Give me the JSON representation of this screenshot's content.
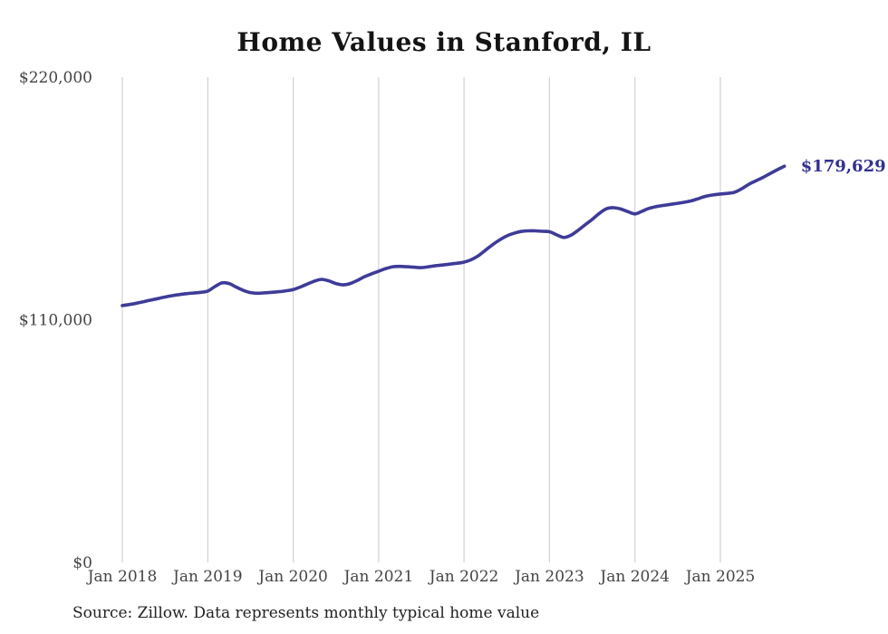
{
  "page": {
    "title": "Home Values in Stanford, IL",
    "source_note": "Source: Zillow. Data represents monthly typical home value"
  },
  "chart_data": {
    "type": "line",
    "title": "Home Values in Stanford, IL",
    "xlabel": "",
    "ylabel": "",
    "ylim": [
      0,
      220000
    ],
    "grid": "vertical-yearly-gridlines",
    "legend": "none",
    "end_label": "$179,629",
    "last_value": 179629,
    "x_tick_labels": [
      "Jan 2018",
      "Jan 2019",
      "Jan 2020",
      "Jan 2021",
      "Jan 2022",
      "Jan 2023",
      "Jan 2024",
      "Jan 2025"
    ],
    "y_ticks": [
      {
        "label": "$220,000",
        "value": 220000
      },
      {
        "label": "$110,000",
        "value": 110000
      },
      {
        "label": "$0",
        "value": 0
      }
    ],
    "x": [
      "2018-01",
      "2018-02",
      "2018-03",
      "2018-04",
      "2018-05",
      "2018-06",
      "2018-07",
      "2018-08",
      "2018-09",
      "2018-10",
      "2018-11",
      "2018-12",
      "2019-01",
      "2019-02",
      "2019-03",
      "2019-04",
      "2019-05",
      "2019-06",
      "2019-07",
      "2019-08",
      "2019-09",
      "2019-10",
      "2019-11",
      "2019-12",
      "2020-01",
      "2020-02",
      "2020-03",
      "2020-04",
      "2020-05",
      "2020-06",
      "2020-07",
      "2020-08",
      "2020-09",
      "2020-10",
      "2020-11",
      "2020-12",
      "2021-01",
      "2021-02",
      "2021-03",
      "2021-04",
      "2021-05",
      "2021-06",
      "2021-07",
      "2021-08",
      "2021-09",
      "2021-10",
      "2021-11",
      "2021-12",
      "2022-01",
      "2022-02",
      "2022-03",
      "2022-04",
      "2022-05",
      "2022-06",
      "2022-07",
      "2022-08",
      "2022-09",
      "2022-10",
      "2022-11",
      "2022-12",
      "2023-01",
      "2023-02",
      "2023-03",
      "2023-04",
      "2023-05",
      "2023-06",
      "2023-07",
      "2023-08",
      "2023-09",
      "2023-10",
      "2023-11",
      "2023-12",
      "2024-01",
      "2024-02",
      "2024-03",
      "2024-04",
      "2024-05",
      "2024-06",
      "2024-07",
      "2024-08",
      "2024-09",
      "2024-10",
      "2024-11",
      "2024-12",
      "2025-01",
      "2025-02",
      "2025-03",
      "2025-04",
      "2025-05",
      "2025-06",
      "2025-07",
      "2025-08",
      "2025-09",
      "2025-10"
    ],
    "values": [
      116400,
      116900,
      117500,
      118200,
      118900,
      119600,
      120300,
      120900,
      121400,
      121800,
      122100,
      122400,
      123000,
      125000,
      126700,
      126400,
      124800,
      123300,
      122300,
      122000,
      122200,
      122400,
      122700,
      123100,
      123700,
      124800,
      126200,
      127500,
      128300,
      127600,
      126400,
      125800,
      126400,
      127800,
      129500,
      130800,
      132000,
      133200,
      134000,
      134200,
      134000,
      133800,
      133600,
      134000,
      134500,
      134800,
      135200,
      135600,
      136100,
      137200,
      139000,
      141500,
      144000,
      146200,
      148000,
      149200,
      150000,
      150300,
      150300,
      150100,
      149900,
      148500,
      147300,
      148300,
      150500,
      153000,
      155500,
      158200,
      160300,
      160800,
      160200,
      159000,
      158000,
      159200,
      160500,
      161300,
      161800,
      162300,
      162800,
      163300,
      164000,
      165000,
      166000,
      166600,
      167000,
      167300,
      167800,
      169400,
      171400,
      173000,
      174500,
      176300,
      178000,
      179629
    ],
    "colors": {
      "line": "#3e3b98",
      "end_label": "#32308f",
      "grid": "#d2d2d2",
      "axis_text": "#444444",
      "title": "#141414",
      "source": "#222222"
    }
  }
}
